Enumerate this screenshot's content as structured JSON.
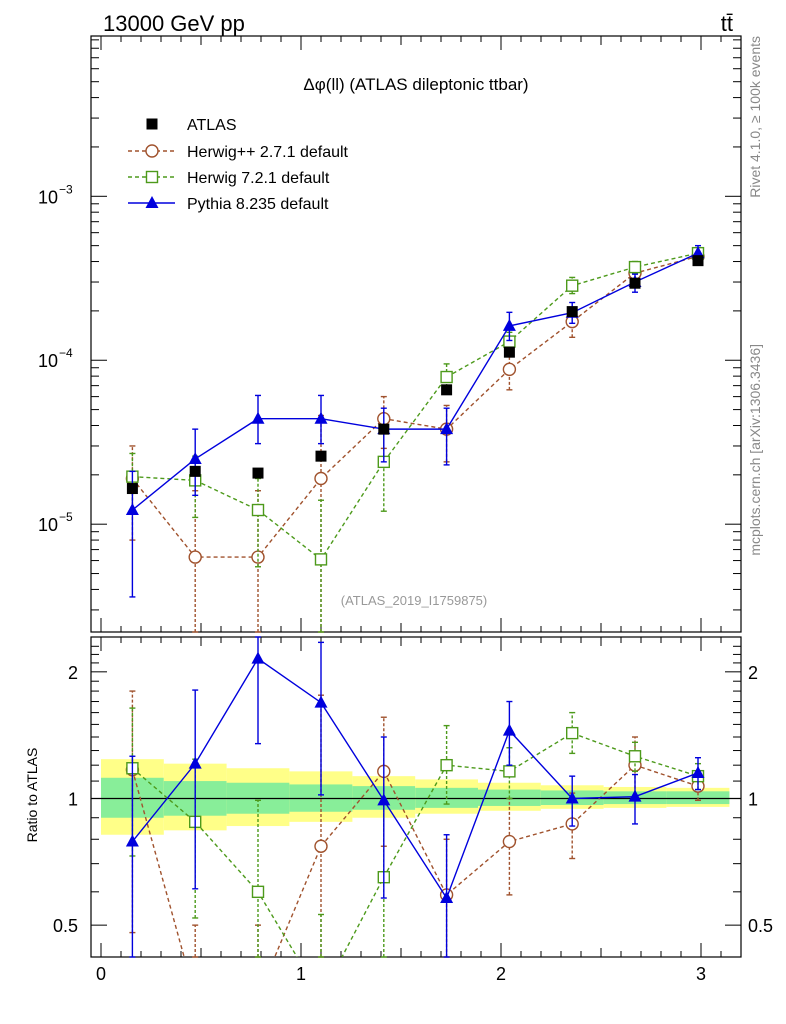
{
  "header": {
    "left_label": "13000 GeV pp",
    "right_label": "tt̄"
  },
  "side": {
    "rivet": "Rivet 4.1.0, ≥ 100k events",
    "source": "mcplots.cern.ch [arXiv:1306.3436]"
  },
  "chart_data": [
    {
      "type": "line",
      "title": "Δφ(ll) (ATLAS dileptonic ttbar)",
      "analysis_id": "(ATLAS_2019_I1759875)",
      "yscale": "log",
      "ylim": [
        2.2e-06,
        0.0095
      ],
      "xlim": [
        -0.05,
        3.2
      ],
      "yticks": [
        {
          "value": 0.001,
          "base": "10",
          "exp": "−3"
        },
        {
          "value": 0.0001,
          "base": "10",
          "exp": "−4"
        },
        {
          "value": 1e-05,
          "base": "10",
          "exp": "−5"
        }
      ],
      "x": [
        0.157,
        0.471,
        0.785,
        1.1,
        1.414,
        1.728,
        2.042,
        2.356,
        2.67,
        2.985
      ],
      "series": [
        {
          "name": "ATLAS",
          "color": "#000000",
          "marker": "square-filled",
          "line": "none",
          "values": [
            1.65e-05,
            2.1e-05,
            2.05e-05,
            2.6e-05,
            3.8e-05,
            6.6e-05,
            0.000112,
            0.000198,
            0.000295,
            0.000405
          ],
          "err_lo": [
            1.65e-05,
            2.1e-05,
            2.05e-05,
            2.6e-05,
            3.8e-05,
            6.6e-05,
            0.000112,
            0.000198,
            0.000295,
            0.000405
          ],
          "err_hi": [
            1.65e-05,
            2.1e-05,
            2.05e-05,
            2.6e-05,
            3.8e-05,
            6.6e-05,
            0.000112,
            0.000198,
            0.000295,
            0.000405
          ]
        },
        {
          "name": "Herwig++ 2.7.1 default",
          "color": "#a0522d",
          "marker": "circle-open",
          "line": "dashed",
          "values": [
            1.9e-05,
            6.3e-06,
            6.3e-06,
            1.9e-05,
            4.4e-05,
            3.8e-05,
            8.8e-05,
            0.000172,
            0.00034,
            0.00043
          ],
          "err_lo": [
            8e-06,
            1e-06,
            1e-06,
            1e-06,
            2.9e-05,
            2.4e-05,
            6.6e-05,
            0.000138,
            0.00029,
            0.00039
          ],
          "err_hi": [
            3e-05,
            1.6e-05,
            1.6e-05,
            4.6e-05,
            6e-05,
            5.3e-05,
            0.00011,
            0.000205,
            0.00039,
            0.00047
          ]
        },
        {
          "name": "Herwig 7.2.1 default",
          "color": "#4d9a1b",
          "marker": "square-open",
          "line": "dashed",
          "values": [
            1.95e-05,
            1.85e-05,
            1.22e-05,
            6.1e-06,
            2.4e-05,
            7.9e-05,
            0.00013,
            0.000285,
            0.00037,
            0.00045
          ],
          "err_lo": [
            1.2e-05,
            1.1e-05,
            5.5e-06,
            1e-06,
            1.2e-05,
            6.4e-05,
            0.000112,
            0.000255,
            0.00034,
            0.00042
          ],
          "err_hi": [
            2.7e-05,
            2.6e-05,
            1.9e-05,
            1.4e-05,
            3.7e-05,
            9.5e-05,
            0.000148,
            0.00032,
            0.0004,
            0.00048
          ]
        },
        {
          "name": "Pythia 8.235 default",
          "color": "#0000dd",
          "marker": "triangle-filled",
          "line": "solid",
          "values": [
            1.22e-05,
            2.5e-05,
            4.4e-05,
            4.4e-05,
            3.8e-05,
            3.8e-05,
            0.000162,
            0.000195,
            0.0003,
            0.00045
          ],
          "err_lo": [
            3.6e-06,
            1.5e-05,
            3.1e-05,
            3.1e-05,
            2.4e-05,
            2.3e-05,
            0.000132,
            0.000168,
            0.00026,
            0.000415
          ],
          "err_hi": [
            2.1e-05,
            3.8e-05,
            6.1e-05,
            6.1e-05,
            5.1e-05,
            5.1e-05,
            0.000196,
            0.000225,
            0.000335,
            0.0005
          ]
        }
      ]
    },
    {
      "type": "line",
      "ylabel": "Ratio to ATLAS",
      "yscale": "log",
      "ylim": [
        0.42,
        2.42
      ],
      "xlim": [
        -0.05,
        3.2
      ],
      "xticks": [
        "0",
        "1",
        "2",
        "3"
      ],
      "yticks": [
        {
          "value": 0.5,
          "label": "0.5"
        },
        {
          "value": 1,
          "label": "1"
        },
        {
          "value": 2,
          "label": "2"
        }
      ],
      "reference_line": 1,
      "bins": [
        0,
        0.314,
        0.628,
        0.942,
        1.257,
        1.571,
        1.885,
        2.199,
        2.513,
        2.827,
        3.142
      ],
      "band_inner": [
        [
          0.9,
          1.12
        ],
        [
          0.91,
          1.1
        ],
        [
          0.92,
          1.09
        ],
        [
          0.93,
          1.08
        ],
        [
          0.94,
          1.07
        ],
        [
          0.95,
          1.06
        ],
        [
          0.96,
          1.05
        ],
        [
          0.965,
          1.045
        ],
        [
          0.97,
          1.04
        ],
        [
          0.97,
          1.04
        ]
      ],
      "band_outer": [
        [
          0.82,
          1.24
        ],
        [
          0.84,
          1.21
        ],
        [
          0.86,
          1.18
        ],
        [
          0.88,
          1.16
        ],
        [
          0.9,
          1.13
        ],
        [
          0.92,
          1.11
        ],
        [
          0.935,
          1.09
        ],
        [
          0.945,
          1.075
        ],
        [
          0.95,
          1.065
        ],
        [
          0.955,
          1.06
        ]
      ],
      "x": [
        0.157,
        0.471,
        0.785,
        1.1,
        1.414,
        1.728,
        2.042,
        2.356,
        2.67,
        2.985
      ],
      "series": [
        {
          "name": "Herwig++ 2.7.1 default",
          "color": "#a0522d",
          "marker": "circle-open",
          "line": "dashed",
          "values": [
            1.17,
            0.3,
            0.3,
            0.77,
            1.16,
            0.59,
            0.79,
            0.87,
            1.2,
            1.07
          ],
          "err_lo": [
            0.48,
            0.1,
            0.1,
            0.1,
            0.77,
            0.39,
            0.59,
            0.72,
            1.0,
            0.99
          ],
          "err_hi": [
            1.8,
            0.5,
            0.5,
            1.76,
            1.56,
            0.8,
            1.0,
            1.03,
            1.4,
            1.16
          ]
        },
        {
          "name": "Herwig 7.2.1 default",
          "color": "#4d9a1b",
          "marker": "square-open",
          "line": "dashed",
          "values": [
            1.18,
            0.88,
            0.6,
            0.23,
            0.65,
            1.2,
            1.16,
            1.43,
            1.26,
            1.13
          ],
          "err_lo": [
            0.73,
            0.52,
            0.27,
            0.1,
            0.35,
            0.97,
            1.0,
            1.28,
            1.16,
            1.05
          ],
          "err_hi": [
            1.64,
            1.24,
            0.99,
            0.53,
            0.98,
            1.49,
            1.32,
            1.6,
            1.36,
            1.21
          ]
        },
        {
          "name": "Pythia 8.235 default",
          "color": "#0000dd",
          "marker": "triangle-filled",
          "line": "solid",
          "values": [
            0.79,
            1.21,
            2.15,
            1.69,
            0.99,
            0.58,
            1.45,
            1.0,
            1.01,
            1.15
          ],
          "err_lo": [
            0.3,
            0.61,
            1.35,
            1.02,
            0.58,
            0.37,
            1.2,
            0.86,
            0.87,
            1.05
          ],
          "err_hi": [
            1.26,
            1.81,
            2.95,
            2.35,
            1.4,
            0.82,
            1.7,
            1.13,
            1.14,
            1.25
          ]
        }
      ]
    }
  ]
}
